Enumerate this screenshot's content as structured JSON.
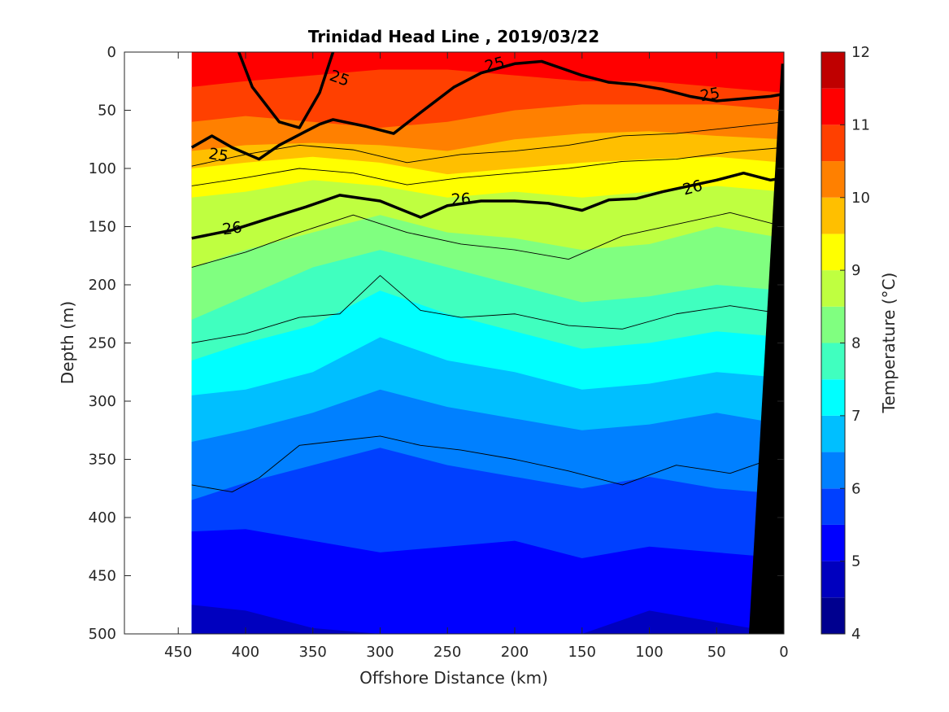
{
  "chart_data": {
    "type": "heatmap",
    "subtype": "filled-contour depth section",
    "title": "Trinidad Head Line , 2019/03/22",
    "xlabel": "Offshore Distance (km)",
    "ylabel": "Depth (m)",
    "xlim": [
      490,
      0
    ],
    "ylim": [
      500,
      0
    ],
    "x_reversed": true,
    "y_reversed": true,
    "x_ticks": [
      450,
      400,
      350,
      300,
      250,
      200,
      150,
      100,
      50,
      0
    ],
    "y_ticks": [
      0,
      50,
      100,
      150,
      200,
      250,
      300,
      350,
      400,
      450,
      500
    ],
    "data_extent_km": [
      440,
      0
    ],
    "colorbar": {
      "label": "Temperature (°C)",
      "range": [
        4,
        12
      ],
      "ticks": [
        4,
        5,
        6,
        7,
        8,
        9,
        10,
        11,
        12
      ],
      "levels": [
        4,
        4.5,
        5,
        5.5,
        6,
        6.5,
        7,
        7.5,
        8,
        8.5,
        9,
        9.5,
        10,
        10.5,
        11,
        11.5,
        12
      ],
      "colors": [
        "#00008f",
        "#0000bf",
        "#0000ff",
        "#0040ff",
        "#0080ff",
        "#00bfff",
        "#00ffff",
        "#40ffbf",
        "#80ff80",
        "#bfff40",
        "#ffff00",
        "#ffbf00",
        "#ff8000",
        "#ff4000",
        "#ff0000",
        "#bf0000"
      ]
    },
    "isotherm_depths_m": {
      "x_km": [
        440,
        400,
        350,
        300,
        250,
        200,
        150,
        100,
        50,
        0
      ],
      "series": [
        {
          "t": 11.0,
          "values": [
            30,
            25,
            20,
            15,
            15,
            20,
            25,
            25,
            30,
            35
          ]
        },
        {
          "t": 10.5,
          "values": [
            60,
            55,
            60,
            65,
            60,
            50,
            45,
            45,
            45,
            50
          ]
        },
        {
          "t": 10.0,
          "values": [
            85,
            80,
            78,
            80,
            85,
            75,
            70,
            68,
            72,
            75
          ]
        },
        {
          "t": 9.5,
          "values": [
            100,
            95,
            90,
            95,
            105,
            100,
            95,
            92,
            90,
            95
          ]
        },
        {
          "t": 9.0,
          "values": [
            125,
            120,
            110,
            115,
            125,
            120,
            125,
            120,
            115,
            120
          ]
        },
        {
          "t": 8.5,
          "values": [
            185,
            170,
            155,
            140,
            155,
            160,
            170,
            165,
            150,
            160
          ]
        },
        {
          "t": 8.0,
          "values": [
            230,
            210,
            185,
            170,
            185,
            200,
            215,
            210,
            200,
            205
          ]
        },
        {
          "t": 7.5,
          "values": [
            265,
            250,
            235,
            205,
            225,
            240,
            255,
            250,
            240,
            245
          ]
        },
        {
          "t": 7.0,
          "values": [
            295,
            290,
            275,
            245,
            265,
            275,
            290,
            285,
            275,
            280
          ]
        },
        {
          "t": 6.5,
          "values": [
            335,
            325,
            310,
            290,
            305,
            315,
            325,
            320,
            310,
            320
          ]
        },
        {
          "t": 6.0,
          "values": [
            385,
            370,
            355,
            340,
            355,
            365,
            375,
            365,
            375,
            380
          ]
        },
        {
          "t": 5.5,
          "values": [
            412,
            410,
            420,
            430,
            425,
            420,
            435,
            425,
            430,
            435
          ]
        },
        {
          "t": 5.0,
          "values": [
            475,
            480,
            495,
            500,
            500,
            500,
            500,
            480,
            490,
            500
          ]
        }
      ]
    },
    "density_contours": [
      {
        "label": "25",
        "bold": true,
        "x_km": [
          440,
          425,
          410,
          390,
          375,
          355,
          345,
          335,
          310,
          290,
          270,
          245,
          225,
          200,
          180,
          165,
          150,
          130,
          110,
          90,
          70,
          50,
          30,
          10,
          0
        ],
        "y_m": [
          82,
          72,
          82,
          92,
          80,
          68,
          62,
          58,
          64,
          70,
          52,
          30,
          18,
          10,
          8,
          14,
          20,
          26,
          28,
          32,
          38,
          42,
          40,
          38,
          36
        ]
      },
      {
        "label": "25",
        "bold": true,
        "x_km": [
          405,
          395,
          375,
          360,
          345,
          335
        ],
        "y_m": [
          0,
          30,
          60,
          65,
          35,
          0
        ]
      },
      {
        "label": "26",
        "bold": true,
        "x_km": [
          440,
          410,
          380,
          355,
          330,
          300,
          270,
          250,
          225,
          200,
          175,
          150,
          130,
          110,
          90,
          70,
          50,
          30,
          10,
          0
        ],
        "y_m": [
          160,
          153,
          142,
          133,
          123,
          128,
          142,
          132,
          128,
          128,
          130,
          136,
          127,
          126,
          120,
          115,
          110,
          104,
          110,
          108
        ]
      },
      {
        "label": "",
        "bold": false,
        "x_km": [
          440,
          400,
          360,
          320,
          280,
          240,
          200,
          160,
          120,
          80,
          40,
          0
        ],
        "y_m": [
          98,
          88,
          80,
          84,
          95,
          88,
          85,
          80,
          72,
          70,
          65,
          60
        ]
      },
      {
        "label": "",
        "bold": false,
        "x_km": [
          440,
          400,
          360,
          320,
          280,
          240,
          200,
          160,
          120,
          80,
          40,
          0
        ],
        "y_m": [
          115,
          108,
          100,
          104,
          114,
          108,
          104,
          100,
          94,
          92,
          86,
          82
        ]
      },
      {
        "label": "",
        "bold": false,
        "x_km": [
          440,
          400,
          360,
          320,
          280,
          240,
          200,
          160,
          120,
          80,
          40,
          0
        ],
        "y_m": [
          185,
          172,
          155,
          140,
          155,
          165,
          170,
          178,
          158,
          148,
          138,
          150
        ]
      },
      {
        "label": "",
        "bold": false,
        "x_km": [
          440,
          400,
          360,
          330,
          300,
          270,
          240,
          200,
          160,
          120,
          80,
          40,
          0
        ],
        "y_m": [
          250,
          242,
          228,
          225,
          192,
          222,
          228,
          225,
          235,
          238,
          225,
          218,
          225
        ]
      },
      {
        "label": "",
        "bold": false,
        "x_km": [
          440,
          410,
          390,
          360,
          330,
          300,
          270,
          240,
          200,
          160,
          120,
          80,
          40,
          15
        ],
        "y_m": [
          372,
          378,
          366,
          338,
          334,
          330,
          338,
          342,
          350,
          360,
          372,
          355,
          362,
          352
        ]
      }
    ],
    "contour_labels": [
      {
        "text": "25",
        "x_km": 420,
        "y_m": 88,
        "angle": 10
      },
      {
        "text": "25",
        "x_km": 330,
        "y_m": 22,
        "angle": 20
      },
      {
        "text": "25",
        "x_km": 215,
        "y_m": 10,
        "angle": -15
      },
      {
        "text": "25",
        "x_km": 55,
        "y_m": 36,
        "angle": -10
      },
      {
        "text": "26",
        "x_km": 410,
        "y_m": 151,
        "angle": -8
      },
      {
        "text": "26",
        "x_km": 240,
        "y_m": 126,
        "angle": -3
      },
      {
        "text": "26",
        "x_km": 68,
        "y_m": 116,
        "angle": -15
      }
    ],
    "bathymetry_mask": {
      "color": "#000000",
      "x_km": [
        0,
        0,
        25,
        0
      ],
      "y_m": [
        0,
        500,
        500,
        0
      ],
      "polygon_x_km": [
        0,
        0,
        26,
        2
      ],
      "polygon_y_m": [
        10,
        500,
        500,
        10
      ]
    },
    "grid": false
  }
}
